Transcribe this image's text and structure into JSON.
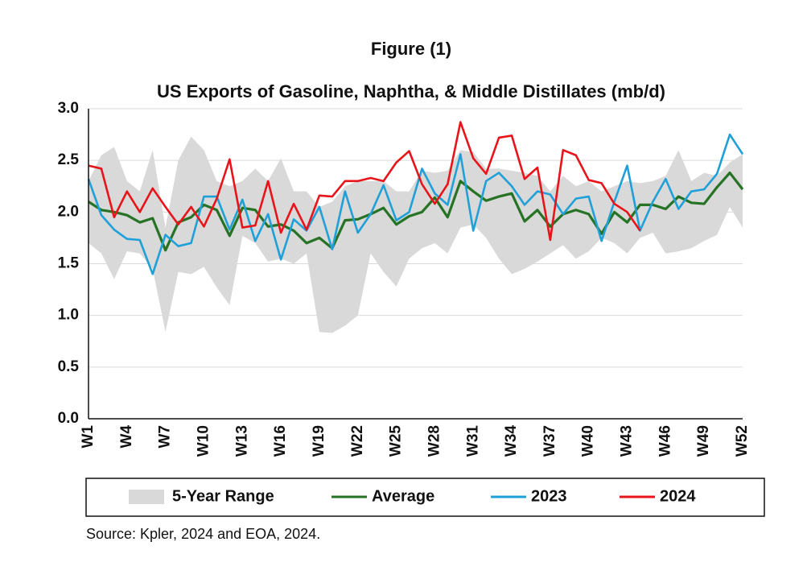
{
  "chart_data": {
    "type": "line",
    "title": "Figure (1)",
    "subtitle": "US Exports of Gasoline, Naphtha, & Middle Distillates (mb/d)",
    "source": "Source: Kpler, 2024 and EOA, 2024.",
    "categories": [
      "W1",
      null,
      null,
      "W4",
      null,
      null,
      "W7",
      null,
      null,
      "W10",
      null,
      null,
      "W13",
      null,
      null,
      "W16",
      null,
      null,
      "W19",
      null,
      null,
      "W22",
      null,
      null,
      "W25",
      null,
      null,
      "W28",
      null,
      null,
      "W31",
      null,
      null,
      "W34",
      null,
      null,
      "W37",
      null,
      null,
      "W40",
      null,
      null,
      "W43",
      null,
      null,
      "W46",
      null,
      null,
      "W49",
      null,
      null,
      "W52"
    ],
    "ylim": [
      0,
      3
    ],
    "yticks": [
      {
        "value": 0,
        "label": "0.0"
      },
      0.5,
      {
        "value": 1,
        "label": "1.0"
      },
      1.5,
      {
        "value": 2,
        "label": "2.0"
      },
      2.5,
      {
        "value": 3,
        "label": "3.0"
      }
    ],
    "grid": true,
    "legend": "bottom",
    "series": [
      {
        "name": "5-Year Range",
        "color": "#d9d9d9",
        "high": [
          2.3,
          2.55,
          2.63,
          2.3,
          2.2,
          2.6,
          1.85,
          2.5,
          2.73,
          2.6,
          2.3,
          2.25,
          2.3,
          2.42,
          2.3,
          2.52,
          2.2,
          2.2,
          2.05,
          2.1,
          2.25,
          2.3,
          2.3,
          2.3,
          2.2,
          2.2,
          2.4,
          2.38,
          2.4,
          2.6,
          2.58,
          2.42,
          2.42,
          2.4,
          2.38,
          2.35,
          2.2,
          2.35,
          2.25,
          2.3,
          2.2,
          2.25,
          2.3,
          2.28,
          2.3,
          2.35,
          2.6,
          2.3,
          2.38,
          2.35,
          2.48,
          2.56
        ],
        "low": [
          1.7,
          1.6,
          1.35,
          1.62,
          1.6,
          1.45,
          0.84,
          1.42,
          1.4,
          1.47,
          1.27,
          1.1,
          1.77,
          1.7,
          1.52,
          1.55,
          1.5,
          1.6,
          0.84,
          0.83,
          0.9,
          1.0,
          1.6,
          1.42,
          1.28,
          1.55,
          1.65,
          1.7,
          1.6,
          1.85,
          1.88,
          1.75,
          1.55,
          1.4,
          1.45,
          1.52,
          1.6,
          1.68,
          1.55,
          1.62,
          1.75,
          1.7,
          1.6,
          1.75,
          1.8,
          1.6,
          1.62,
          1.65,
          1.72,
          1.78,
          2.05,
          1.85
        ]
      },
      {
        "name": "Average",
        "color": "#267326",
        "values": [
          2.1,
          2.02,
          2.0,
          1.97,
          1.9,
          1.94,
          1.63,
          1.9,
          1.95,
          2.07,
          2.02,
          1.77,
          2.04,
          2.02,
          1.86,
          1.88,
          1.82,
          1.7,
          1.75,
          1.65,
          1.92,
          1.93,
          1.98,
          2.04,
          1.88,
          1.96,
          2.0,
          2.14,
          1.95,
          2.3,
          2.2,
          2.11,
          2.15,
          2.18,
          1.91,
          2.02,
          1.86,
          1.98,
          2.02,
          1.98,
          1.79,
          2.0,
          1.9,
          2.07,
          2.07,
          2.03,
          2.15,
          2.09,
          2.08,
          2.24,
          2.38,
          2.22
        ]
      },
      {
        "name": "2023",
        "color": "#1fa0d8",
        "values": [
          2.32,
          1.97,
          1.83,
          1.74,
          1.73,
          1.4,
          1.78,
          1.67,
          1.7,
          2.15,
          2.15,
          1.83,
          2.12,
          1.72,
          1.98,
          1.54,
          1.93,
          1.82,
          2.05,
          1.64,
          2.2,
          1.8,
          1.98,
          2.26,
          1.92,
          2.0,
          2.42,
          2.18,
          2.07,
          2.56,
          1.82,
          2.3,
          2.38,
          2.25,
          2.07,
          2.2,
          2.17,
          1.98,
          2.13,
          2.15,
          1.72,
          2.1,
          2.45,
          1.82,
          2.1,
          2.32,
          2.03,
          2.2,
          2.22,
          2.37,
          2.75,
          2.56
        ]
      },
      {
        "name": "2024",
        "color": "#e8141a",
        "values": [
          2.45,
          2.42,
          1.95,
          2.2,
          2.0,
          2.23,
          2.05,
          1.88,
          2.05,
          1.86,
          2.13,
          2.51,
          1.85,
          1.87,
          2.3,
          1.8,
          2.08,
          1.83,
          2.16,
          2.15,
          2.3,
          2.3,
          2.33,
          2.3,
          2.48,
          2.59,
          2.27,
          2.08,
          2.27,
          2.87,
          2.52,
          2.37,
          2.72,
          2.74,
          2.32,
          2.43,
          1.73,
          2.6,
          2.55,
          2.31,
          2.28,
          2.08,
          2.0,
          1.82,
          null,
          null,
          null,
          null,
          null,
          null,
          null,
          null
        ]
      }
    ]
  }
}
